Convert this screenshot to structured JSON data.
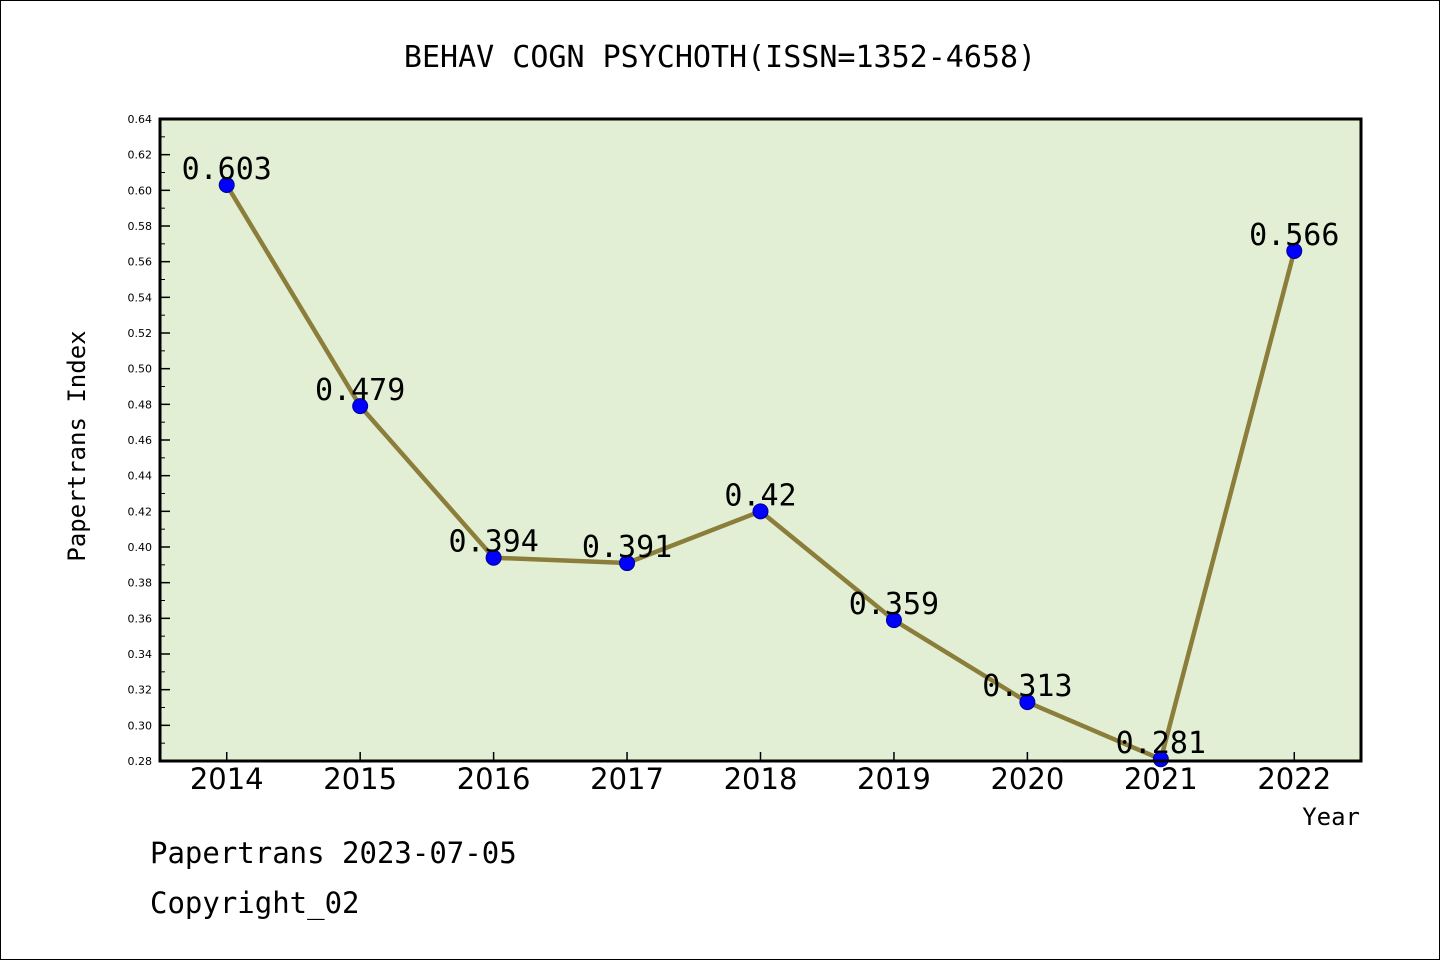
{
  "chart_data": {
    "type": "line",
    "title": "BEHAV COGN PSYCHOTH(ISSN=1352-4658)",
    "xlabel": "Year",
    "ylabel": "Papertrans Index",
    "categories": [
      "2014",
      "2015",
      "2016",
      "2017",
      "2018",
      "2019",
      "2020",
      "2021",
      "2022"
    ],
    "series": [
      {
        "values": [
          0.603,
          0.479,
          0.394,
          0.391,
          0.42,
          0.359,
          0.313,
          0.281,
          0.566
        ],
        "labels": [
          "0.603",
          "0.479",
          "0.394",
          "0.391",
          "0.42",
          "0.359",
          "0.313",
          "0.281",
          "0.566"
        ]
      }
    ],
    "ylim": [
      0.28,
      0.64
    ],
    "yticks": [
      "0.28",
      "0.30",
      "0.32",
      "0.34",
      "0.36",
      "0.38",
      "0.40",
      "0.42",
      "0.44",
      "0.46",
      "0.48",
      "0.50",
      "0.52",
      "0.54",
      "0.56",
      "0.58",
      "0.60",
      "0.62",
      "0.64"
    ],
    "grid": false,
    "colors": {
      "plot_background": "#e2efd5",
      "line": "#8b7d3a",
      "marker": "#0000ff"
    }
  },
  "footer": {
    "date_line": "Papertrans 2023-07-05",
    "copyright": "Copyright_02"
  }
}
